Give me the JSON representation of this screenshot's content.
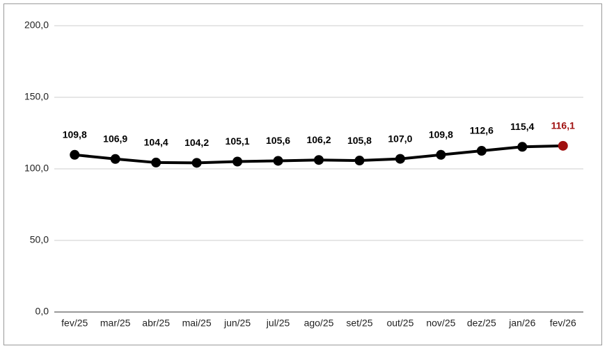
{
  "chart_data": {
    "type": "line",
    "categories": [
      "fev/25",
      "mar/25",
      "abr/25",
      "mai/25",
      "jun/25",
      "jul/25",
      "ago/25",
      "set/25",
      "out/25",
      "nov/25",
      "dez/25",
      "jan/26",
      "fev/26"
    ],
    "series": [
      {
        "color": "#000000",
        "values": [
          109.8,
          106.9,
          104.4,
          104.2,
          105.1,
          105.6,
          106.2,
          105.8,
          107.0,
          109.8,
          112.6,
          115.4,
          116.1
        ],
        "value_labels": [
          "109,8",
          "106,9",
          "104,4",
          "104,2",
          "105,1",
          "105,6",
          "106,2",
          "105,8",
          "107,0",
          "109,8",
          "112,6",
          "115,4",
          "116,1"
        ],
        "marker_colors": [
          "#000000",
          "#000000",
          "#000000",
          "#000000",
          "#000000",
          "#000000",
          "#000000",
          "#000000",
          "#000000",
          "#000000",
          "#000000",
          "#000000",
          "#a01010"
        ]
      }
    ],
    "ylim": [
      0,
      200
    ],
    "yticks": [
      {
        "value": 0,
        "label": "0,0"
      },
      {
        "value": 50,
        "label": "50,0"
      },
      {
        "value": 100,
        "label": "100,0"
      },
      {
        "value": 150,
        "label": "150,0"
      },
      {
        "value": 200,
        "label": "200,0"
      }
    ],
    "grid": true
  }
}
